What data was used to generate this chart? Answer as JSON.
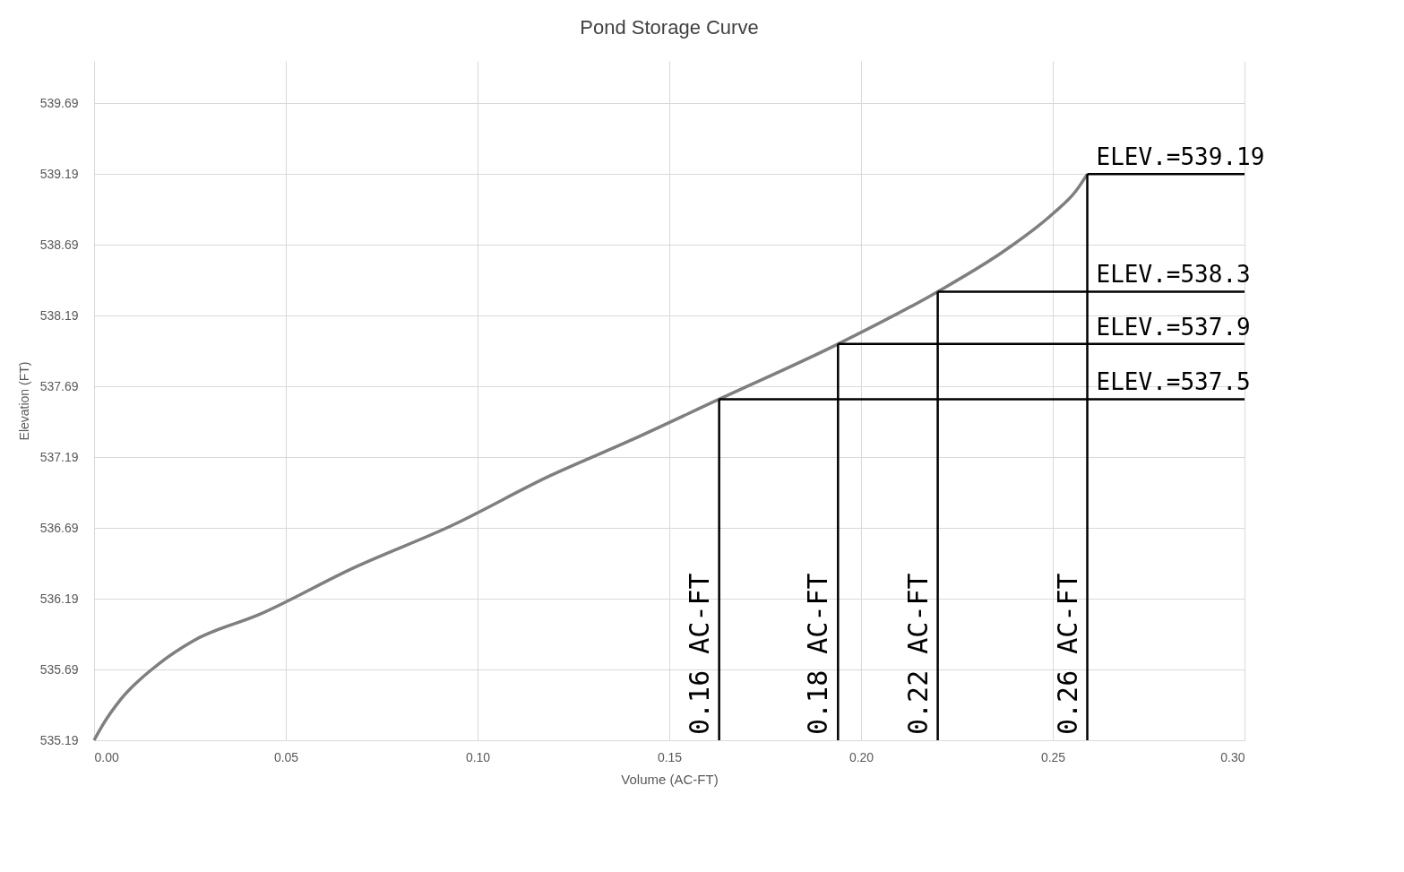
{
  "chart_data": {
    "type": "line",
    "title": "Pond Storage Curve",
    "xlabel": "Volume (AC-FT)",
    "ylabel": "Elevation (FT)",
    "x": [
      0,
      0.0023,
      0.007,
      0.0164,
      0.0257,
      0.0432,
      0.0678,
      0.0935,
      0.119,
      0.14,
      0.163,
      0.194,
      0.22,
      0.238,
      0.25,
      0.256,
      0.259
    ],
    "series": [
      {
        "color": "#7f7f7f",
        "values": [
          535.19,
          535.3,
          535.48,
          535.72,
          535.89,
          536.08,
          536.41,
          536.71,
          537.06,
          537.31,
          537.6,
          537.99,
          538.36,
          538.66,
          538.91,
          539.07,
          539.19
        ]
      }
    ],
    "xlim": [
      0,
      0.3
    ],
    "xticks": [
      {
        "value": 0,
        "label": "0.00"
      },
      {
        "value": 0.05,
        "label": "0.05"
      },
      {
        "value": 0.1,
        "label": "0.10"
      },
      {
        "value": 0.15,
        "label": "0.15"
      },
      {
        "value": 0.2,
        "label": "0.20"
      },
      {
        "value": 0.25,
        "label": "0.25"
      },
      {
        "value": 0.3,
        "label": "0.30"
      }
    ],
    "ylim": [
      535.19,
      539.99
    ],
    "yticks": [
      535.19,
      535.69,
      536.19,
      536.69,
      537.19,
      537.69,
      538.19,
      538.69,
      539.19,
      539.69
    ],
    "grid": true,
    "marker": "none",
    "line_style": "solid",
    "annotations": [
      {
        "text": "0.16 AC-FT",
        "x": 0.163,
        "y": 537.6
      },
      {
        "text": "ELEV.=537.5",
        "x": 0.163,
        "y": 537.6
      },
      {
        "text": "0.18 AC-FT",
        "x": 0.194,
        "y": 537.99
      },
      {
        "text": "ELEV.=537.9",
        "x": 0.194,
        "y": 537.99
      },
      {
        "text": "0.22 AC-FT",
        "x": 0.22,
        "y": 538.36
      },
      {
        "text": "ELEV.=538.3",
        "x": 0.22,
        "y": 538.36
      },
      {
        "text": "0.26 AC-FT",
        "x": 0.259,
        "y": 539.19
      },
      {
        "text": "ELEV.=539.19",
        "x": 0.259,
        "y": 539.19
      }
    ]
  }
}
